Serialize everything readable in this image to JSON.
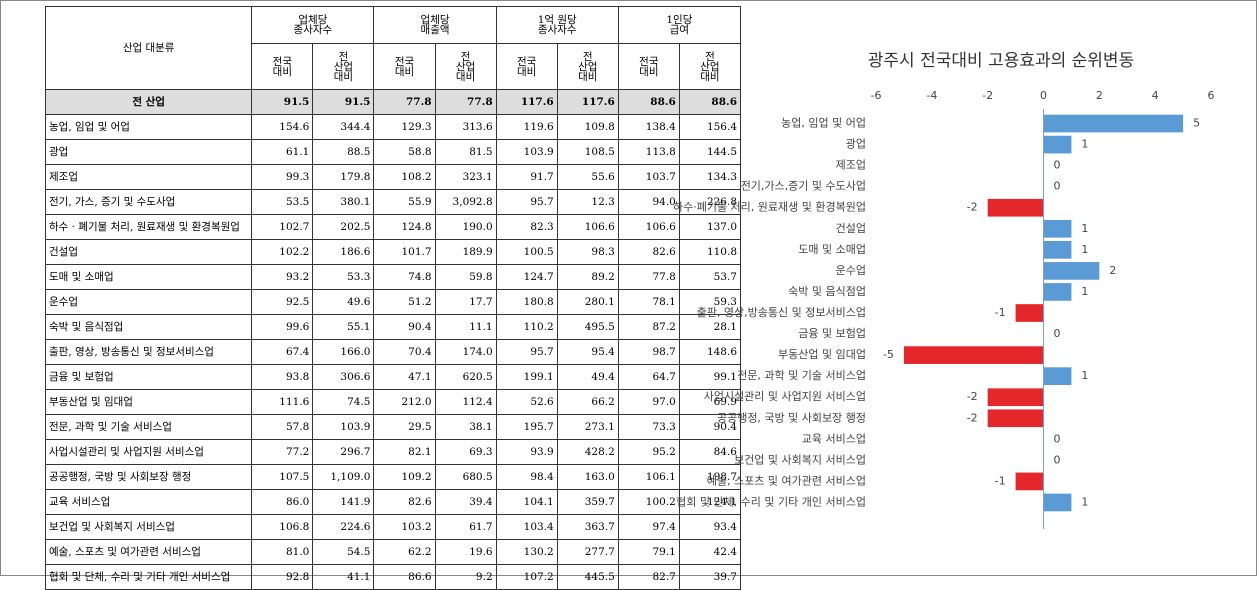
{
  "table": {
    "corner": "산업 대분류",
    "groups": [
      {
        "name": "업체당\n종사자수",
        "subs": [
          "전국\n대비",
          "전\n산업\n대비"
        ]
      },
      {
        "name": "업체당\n매출액",
        "subs": [
          "전국\n대비",
          "전\n산업\n대비"
        ]
      },
      {
        "name": "1억 원당\n종사자수",
        "subs": [
          "전국\n대비",
          "전\n산업\n대비"
        ]
      },
      {
        "name": "1인당\n급여",
        "subs": [
          "전국\n대비",
          "전\n산업\n대비"
        ]
      }
    ],
    "rows": [
      [
        "전 산업",
        "91.5",
        "91.5",
        "77.8",
        "77.8",
        "117.6",
        "117.6",
        "88.6",
        "88.6"
      ],
      [
        "농업, 임업 및 어업",
        "154.6",
        "344.4",
        "129.3",
        "313.6",
        "119.6",
        "109.8",
        "138.4",
        "156.4"
      ],
      [
        "광업",
        "61.1",
        "88.5",
        "58.8",
        "81.5",
        "103.9",
        "108.5",
        "113.8",
        "144.5"
      ],
      [
        "제조업",
        "99.3",
        "179.8",
        "108.2",
        "323.1",
        "91.7",
        "55.6",
        "103.7",
        "134.3"
      ],
      [
        "전기, 가스, 증기 및 수도사업",
        "53.5",
        "380.1",
        "55.9",
        "3,092.8",
        "95.7",
        "12.3",
        "94.0",
        "226.8"
      ],
      [
        "하수 · 폐기물 처리, 원료재생 및 환경복원업",
        "102.7",
        "202.5",
        "124.8",
        "190.0",
        "82.3",
        "106.6",
        "106.6",
        "137.0"
      ],
      [
        "건설업",
        "102.2",
        "186.6",
        "101.7",
        "189.9",
        "100.5",
        "98.3",
        "82.6",
        "110.8"
      ],
      [
        "도매 및 소매업",
        "93.2",
        "53.3",
        "74.8",
        "59.8",
        "124.7",
        "89.2",
        "77.8",
        "53.7"
      ],
      [
        "운수업",
        "92.5",
        "49.6",
        "51.2",
        "17.7",
        "180.8",
        "280.1",
        "78.1",
        "59.3"
      ],
      [
        "숙박 및 음식점업",
        "99.6",
        "55.1",
        "90.4",
        "11.1",
        "110.2",
        "495.5",
        "87.2",
        "28.1"
      ],
      [
        "출판, 영상, 방송통신 및 정보서비스업",
        "67.4",
        "166.0",
        "70.4",
        "174.0",
        "95.7",
        "95.4",
        "98.7",
        "148.6"
      ],
      [
        "금융 및 보험업",
        "93.8",
        "306.6",
        "47.1",
        "620.5",
        "199.1",
        "49.4",
        "64.7",
        "99.1"
      ],
      [
        "부동산업 및 임대업",
        "111.6",
        "74.5",
        "212.0",
        "112.4",
        "52.6",
        "66.2",
        "97.0",
        "69.9"
      ],
      [
        "전문, 과학 및 기술 서비스업",
        "57.8",
        "103.9",
        "29.5",
        "38.1",
        "195.7",
        "273.1",
        "73.3",
        "90.4"
      ],
      [
        "사업시설관리 및 사업지원 서비스업",
        "77.2",
        "296.7",
        "82.1",
        "69.3",
        "93.9",
        "428.2",
        "95.2",
        "84.6"
      ],
      [
        "공공행정, 국방 및 사회보장 행정",
        "107.5",
        "1,109.0",
        "109.2",
        "680.5",
        "98.4",
        "163.0",
        "106.1",
        "198.7"
      ],
      [
        "교육 서비스업",
        "86.0",
        "141.9",
        "82.6",
        "39.4",
        "104.1",
        "359.7",
        "100.2",
        "124.1"
      ],
      [
        "보건업 및 사회복지 서비스업",
        "106.8",
        "224.6",
        "103.2",
        "61.7",
        "103.4",
        "363.7",
        "97.4",
        "93.4"
      ],
      [
        "예술, 스포츠 및 여가관련 서비스업",
        "81.0",
        "54.5",
        "62.2",
        "19.6",
        "130.2",
        "277.7",
        "79.1",
        "42.4"
      ],
      [
        "협회 및 단체, 수리 및 기타 개인 서비스업",
        "92.8",
        "41.1",
        "86.6",
        "9.2",
        "107.2",
        "445.5",
        "82.7",
        "39.7"
      ]
    ]
  },
  "chart_data": {
    "type": "hbar",
    "title": "광주시 전국대비 고용효과의 순위변동",
    "categories": [
      "농업, 임업 및 어업",
      "광업",
      "제조업",
      "전기,가스,증기 및 수도사업",
      "하수·폐기물 처리, 원료재생 및 환경복원업",
      "건설업",
      "도매 및 소매업",
      "운수업",
      "숙박 및 음식점업",
      "출판, 영상,방송통신 및 정보서비스업",
      "금융 및 보험업",
      "부동산업 및 임대업",
      "전문, 과학 및 기술 서비스업",
      "사업시설관리 및 사업지원 서비스업",
      "공공행정, 국방 및 사회보장 행정",
      "교육 서비스업",
      "보건업 및 사회복지 서비스업",
      "예술, 스포츠 및 여가관련 서비스업",
      "협회 및 단체, 수리 및 기타 개인 서비스업"
    ],
    "values": [
      5,
      1,
      0,
      0,
      -2,
      1,
      1,
      2,
      1,
      -1,
      0,
      -5,
      1,
      -2,
      -2,
      0,
      0,
      -1,
      1
    ],
    "color": "#5b9bd5",
    "negative_color": "#e3272b",
    "xlim": [
      -6,
      6
    ],
    "xticks": [
      -6,
      -4,
      -2,
      0,
      2,
      4,
      6
    ]
  }
}
